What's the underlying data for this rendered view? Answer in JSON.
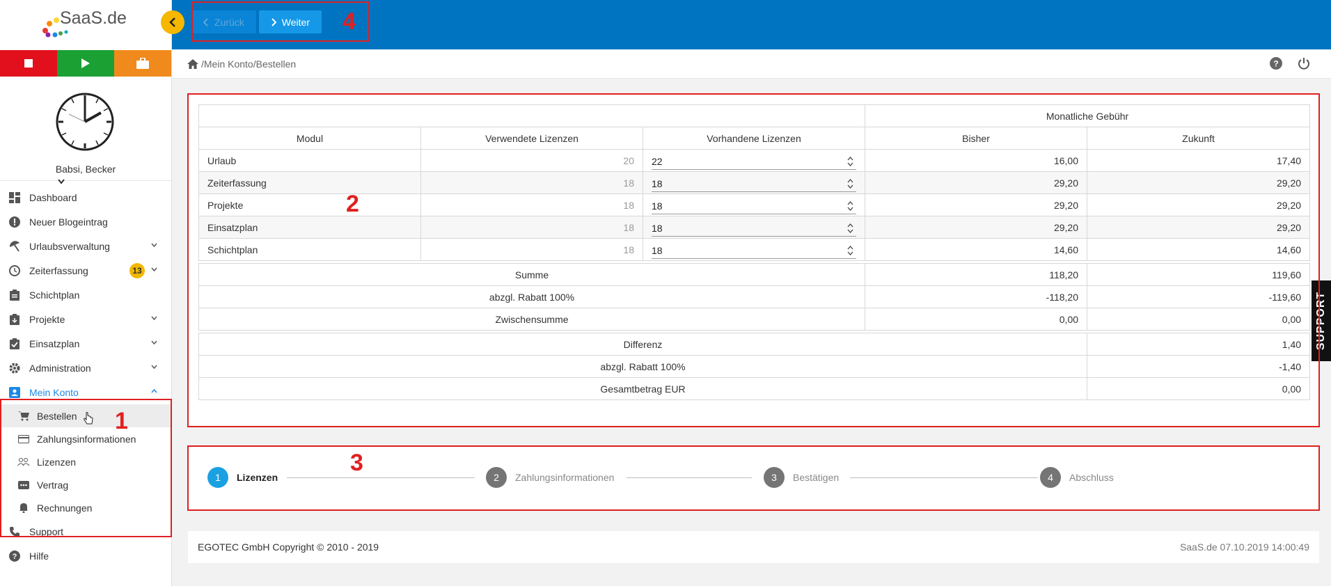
{
  "brand": {
    "logo_text": "SaaS.de"
  },
  "user": {
    "name": "Babsi, Becker"
  },
  "nav": {
    "items": [
      {
        "label": "Dashboard"
      },
      {
        "label": "Neuer Blogeintrag"
      },
      {
        "label": "Urlaubsverwaltung"
      },
      {
        "label": "Zeiterfassung",
        "badge": "13"
      },
      {
        "label": "Schichtplan"
      },
      {
        "label": "Projekte"
      },
      {
        "label": "Einsatzplan"
      },
      {
        "label": "Administration"
      },
      {
        "label": "Mein Konto"
      }
    ],
    "sub": [
      {
        "label": "Bestellen"
      },
      {
        "label": "Zahlungsinformationen"
      },
      {
        "label": "Lizenzen"
      },
      {
        "label": "Vertrag"
      },
      {
        "label": "Rechnungen"
      }
    ],
    "after": [
      {
        "label": "Support"
      },
      {
        "label": "Hilfe"
      }
    ]
  },
  "toolbar": {
    "back_label": "Zurück",
    "next_label": "Weiter"
  },
  "breadcrumb": {
    "text": "/Mein Konto/Bestellen"
  },
  "table": {
    "group_header": "Monatliche Gebühr",
    "headers": [
      "Modul",
      "Verwendete Lizenzen",
      "Vorhandene Lizenzen",
      "Bisher",
      "Zukunft"
    ],
    "rows": [
      {
        "modul": "Urlaub",
        "used": "20",
        "available": "22",
        "bisher": "16,00",
        "zukunft": "17,40"
      },
      {
        "modul": "Zeiterfassung",
        "used": "18",
        "available": "18",
        "bisher": "29,20",
        "zukunft": "29,20"
      },
      {
        "modul": "Projekte",
        "used": "18",
        "available": "18",
        "bisher": "29,20",
        "zukunft": "29,20"
      },
      {
        "modul": "Einsatzplan",
        "used": "18",
        "available": "18",
        "bisher": "29,20",
        "zukunft": "29,20"
      },
      {
        "modul": "Schichtplan",
        "used": "18",
        "available": "18",
        "bisher": "14,60",
        "zukunft": "14,60"
      }
    ],
    "summary": [
      {
        "label": "Summe",
        "bisher": "118,20",
        "zukunft": "119,60"
      },
      {
        "label": "abzgl. Rabatt 100%",
        "bisher": "-118,20",
        "zukunft": "-119,60"
      },
      {
        "label": "Zwischensumme",
        "bisher": "0,00",
        "zukunft": "0,00"
      }
    ],
    "totals": [
      {
        "label": "Differenz",
        "value": "1,40"
      },
      {
        "label": "abzgl. Rabatt 100%",
        "value": "-1,40"
      },
      {
        "label": "Gesamtbetrag EUR",
        "value": "0,00"
      }
    ]
  },
  "steps": [
    {
      "num": "1",
      "label": "Lizenzen"
    },
    {
      "num": "2",
      "label": "Zahlungsinformationen"
    },
    {
      "num": "3",
      "label": "Bestätigen"
    },
    {
      "num": "4",
      "label": "Abschluss"
    }
  ],
  "footer": {
    "copyright": "EGOTEC GmbH Copyright © 2010 - 2019",
    "right": "SaaS.de  07.10.2019 14:00:49"
  },
  "support_tab": "SUPPORT",
  "annotations": [
    "1",
    "2",
    "3",
    "4"
  ],
  "colors": {
    "topbar": "#0074c1",
    "accent": "#1e88e5",
    "badge": "#f2b705",
    "annotation": "#e02020"
  }
}
